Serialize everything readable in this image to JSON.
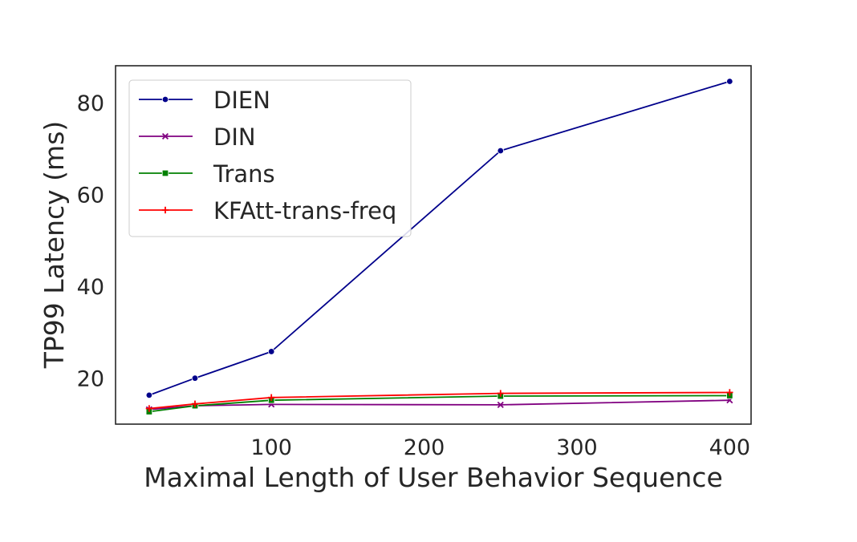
{
  "chart_data": {
    "type": "line",
    "title": "",
    "xlabel": "Maximal Length of User Behavior Sequence",
    "ylabel": "TP99 Latency (ms)",
    "x": [
      20,
      50,
      100,
      250,
      400
    ],
    "xlim": [
      -2,
      414
    ],
    "ylim": [
      10,
      88
    ],
    "xticks": [
      100,
      200,
      300,
      400
    ],
    "yticks": [
      20,
      40,
      60,
      80
    ],
    "grid": false,
    "legend_position": "top-left",
    "series": [
      {
        "name": "DIEN",
        "color": "#00008b",
        "marker": "circle",
        "values": [
          16.3,
          20.0,
          25.8,
          69.5,
          84.6
        ]
      },
      {
        "name": "DIN",
        "color": "#800080",
        "marker": "x",
        "values": [
          13.2,
          14.0,
          14.3,
          14.2,
          15.2
        ]
      },
      {
        "name": "Trans",
        "color": "#008000",
        "marker": "square",
        "values": [
          12.7,
          14.0,
          15.2,
          16.1,
          16.2
        ]
      },
      {
        "name": "KFAtt-trans-freq",
        "color": "#ff0000",
        "marker": "plus",
        "values": [
          13.4,
          14.4,
          15.8,
          16.7,
          16.9
        ]
      }
    ]
  }
}
